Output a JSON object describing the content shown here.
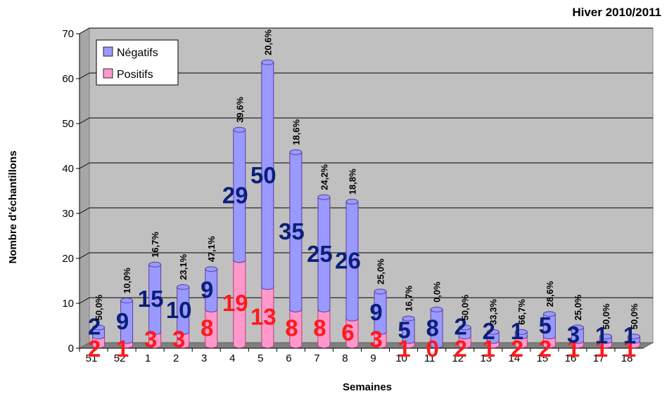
{
  "chart_data": {
    "type": "bar",
    "stacked": true,
    "title": "Hiver 2010/2011",
    "xlabel": "Semaines",
    "ylabel": "Nombre d'échantillons",
    "ylim": [
      0,
      70
    ],
    "yticks": [
      0,
      10,
      20,
      30,
      40,
      50,
      60,
      70
    ],
    "grid": true,
    "legend_placement": "top-left",
    "categories": [
      "51",
      "52",
      "1",
      "2",
      "3",
      "4",
      "5",
      "6",
      "7",
      "8",
      "9",
      "10",
      "11",
      "12",
      "13",
      "14",
      "15",
      "16",
      "17",
      "18"
    ],
    "series": [
      {
        "name": "Positifs",
        "color": "#ff99cc",
        "values": [
          2,
          1,
          3,
          3,
          8,
          19,
          13,
          8,
          8,
          6,
          3,
          1,
          0,
          2,
          1,
          2,
          2,
          1,
          1,
          1
        ]
      },
      {
        "name": "Négatifs",
        "color": "#9999ff",
        "values": [
          2,
          9,
          15,
          10,
          9,
          29,
          50,
          35,
          25,
          26,
          9,
          5,
          8,
          2,
          2,
          1,
          5,
          3,
          1,
          1
        ]
      }
    ],
    "percent_labels": [
      "50,0%",
      "10,0%",
      "16,7%",
      "23,1%",
      "47,1%",
      "39,6%",
      "20,6%",
      "18,6%",
      "24,2%",
      "18,8%",
      "25,0%",
      "16,7%",
      "0,0%",
      "50,0%",
      "33,3%",
      "66,7%",
      "28,6%",
      "25,0%",
      "50,0%",
      "50,0%"
    ],
    "legend": [
      "Négatifs",
      "Positifs"
    ]
  }
}
